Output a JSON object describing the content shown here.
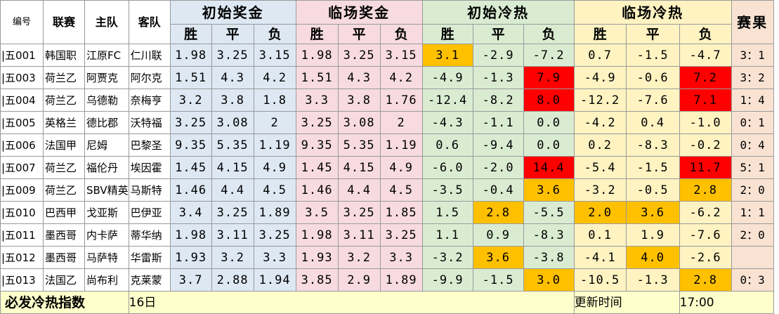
{
  "headers": {
    "id": "编号",
    "league": "联赛",
    "home": "主队",
    "away": "客队",
    "initial_odds": "初始奖金",
    "live_odds": "临场奖金",
    "initial_heat": "初始冷热",
    "live_heat": "临场冷热",
    "result": "赛果",
    "win": "胜",
    "draw": "平",
    "loss": "负"
  },
  "rows": [
    {
      "id": "|五001",
      "league": "韩国职",
      "home": "江原FC",
      "away": "仁川联",
      "io": [
        "1.98",
        "3.25",
        "3.15"
      ],
      "lo": [
        "1.98",
        "3.25",
        "3.15"
      ],
      "ic": [
        "3.1",
        "-2.9",
        "-7.2"
      ],
      "lc": [
        "0.7",
        "-1.5",
        "-4.7"
      ],
      "result": "3：1"
    },
    {
      "id": "|五003",
      "league": "荷兰乙",
      "home": "阿贾克",
      "away": "阿尔克",
      "io": [
        "1.51",
        "4.3",
        "4.2"
      ],
      "lo": [
        "1.51",
        "4.3",
        "4.2"
      ],
      "ic": [
        "-4.9",
        "-1.3",
        "7.9"
      ],
      "lc": [
        "-4.9",
        "-0.6",
        "7.2"
      ],
      "result": "3：2"
    },
    {
      "id": "|五004",
      "league": "荷兰乙",
      "home": "乌德勒",
      "away": "奈梅亨",
      "io": [
        "3.2",
        "3.8",
        "1.8"
      ],
      "lo": [
        "3.3",
        "3.8",
        "1.76"
      ],
      "ic": [
        "-12.4",
        "-8.2",
        "8.0"
      ],
      "lc": [
        "-12.2",
        "-7.6",
        "7.1"
      ],
      "result": "1：4"
    },
    {
      "id": "|五005",
      "league": "英格兰",
      "home": "德比郡",
      "away": "沃特福",
      "io": [
        "3.25",
        "3.08",
        "2"
      ],
      "lo": [
        "3.25",
        "3.08",
        "2"
      ],
      "ic": [
        "-4.3",
        "-1.1",
        "0.0"
      ],
      "lc": [
        "-4.2",
        "0.4",
        "-1.0"
      ],
      "result": "0：1"
    },
    {
      "id": "|五006",
      "league": "法国甲",
      "home": "尼姆",
      "away": "巴黎圣",
      "io": [
        "9.35",
        "5.35",
        "1.19"
      ],
      "lo": [
        "9.35",
        "5.35",
        "1.19"
      ],
      "ic": [
        "0.6",
        "-9.4",
        "0.0"
      ],
      "lc": [
        "0.2",
        "-8.3",
        "-0.2"
      ],
      "result": "0：4"
    },
    {
      "id": "|五007",
      "league": "荷兰乙",
      "home": "福伦丹",
      "away": "埃因霍",
      "io": [
        "1.45",
        "4.15",
        "4.9"
      ],
      "lo": [
        "1.45",
        "4.15",
        "4.9"
      ],
      "ic": [
        "-6.0",
        "-2.0",
        "14.4"
      ],
      "lc": [
        "-5.4",
        "-1.5",
        "11.7"
      ],
      "result": "5：1"
    },
    {
      "id": "|五009",
      "league": "荷兰乙",
      "home": "SBV精英",
      "away": "马斯特",
      "io": [
        "1.46",
        "4.4",
        "4.5"
      ],
      "lo": [
        "1.46",
        "4.4",
        "4.5"
      ],
      "ic": [
        "-3.5",
        "-0.4",
        "3.6"
      ],
      "lc": [
        "-3.2",
        "-0.5",
        "2.8"
      ],
      "result": "2：0"
    },
    {
      "id": "|五010",
      "league": "巴西甲",
      "home": "戈亚斯",
      "away": "巴伊亚",
      "io": [
        "3.4",
        "3.25",
        "1.89"
      ],
      "lo": [
        "3.5",
        "3.25",
        "1.85"
      ],
      "ic": [
        "1.5",
        "2.8",
        "-5.5"
      ],
      "lc": [
        "2.0",
        "3.6",
        "-6.2"
      ],
      "result": "1：1"
    },
    {
      "id": "|五011",
      "league": "墨西哥",
      "home": "内卡萨",
      "away": "蒂华纳",
      "io": [
        "1.98",
        "3.11",
        "3.25"
      ],
      "lo": [
        "1.98",
        "3.11",
        "3.25"
      ],
      "ic": [
        "1.1",
        "0.9",
        "-8.3"
      ],
      "lc": [
        "0.1",
        "1.9",
        "-7.6"
      ],
      "result": "2：0"
    },
    {
      "id": "|五012",
      "league": "墨西哥",
      "home": "马萨特",
      "away": "华雷斯",
      "io": [
        "1.93",
        "3.2",
        "3.3"
      ],
      "lo": [
        "1.93",
        "3.2",
        "3.3"
      ],
      "ic": [
        "-3.2",
        "3.6",
        "-3.8"
      ],
      "lc": [
        "-4.1",
        "4.0",
        "-2.6"
      ],
      "result": ""
    },
    {
      "id": "|五013",
      "league": "法国乙",
      "home": "尚布利",
      "away": "克莱蒙",
      "io": [
        "3.7",
        "2.88",
        "1.94"
      ],
      "lo": [
        "3.85",
        "2.9",
        "1.89"
      ],
      "ic": [
        "-9.9",
        "-1.5",
        "3.0"
      ],
      "lc": [
        "-10.5",
        "-1.3",
        "2.8"
      ],
      "result": "0：3"
    }
  ],
  "highlights": {
    "orange": "#ffc000",
    "red": "#ff0000",
    "cells": [
      {
        "row": 0,
        "group": "ic",
        "col": 0,
        "color": "orange"
      },
      {
        "row": 1,
        "group": "ic",
        "col": 2,
        "color": "red"
      },
      {
        "row": 1,
        "group": "lc",
        "col": 2,
        "color": "red"
      },
      {
        "row": 2,
        "group": "ic",
        "col": 2,
        "color": "red"
      },
      {
        "row": 2,
        "group": "lc",
        "col": 2,
        "color": "red"
      },
      {
        "row": 5,
        "group": "ic",
        "col": 2,
        "color": "red"
      },
      {
        "row": 5,
        "group": "lc",
        "col": 2,
        "color": "red"
      },
      {
        "row": 6,
        "group": "ic",
        "col": 2,
        "color": "orange"
      },
      {
        "row": 6,
        "group": "lc",
        "col": 2,
        "color": "orange"
      },
      {
        "row": 7,
        "group": "ic",
        "col": 1,
        "color": "orange"
      },
      {
        "row": 7,
        "group": "lc",
        "col": 0,
        "color": "orange"
      },
      {
        "row": 7,
        "group": "lc",
        "col": 1,
        "color": "orange"
      },
      {
        "row": 9,
        "group": "ic",
        "col": 1,
        "color": "orange"
      },
      {
        "row": 9,
        "group": "lc",
        "col": 1,
        "color": "orange"
      },
      {
        "row": 10,
        "group": "ic",
        "col": 2,
        "color": "orange"
      },
      {
        "row": 10,
        "group": "lc",
        "col": 2,
        "color": "orange"
      }
    ]
  },
  "footer": {
    "title": "必发冷热指数",
    "date": "16日",
    "update_label": "更新时间",
    "update_time": "17:00"
  }
}
